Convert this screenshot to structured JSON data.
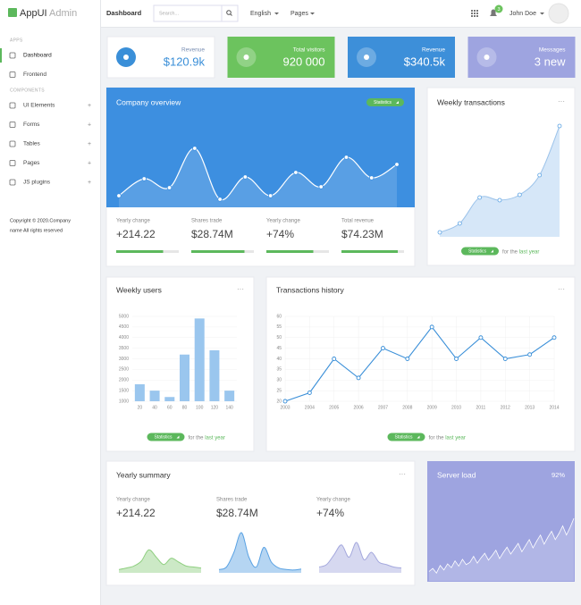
{
  "logo": {
    "name": "AppUI",
    "suffix": "Admin"
  },
  "topbar": {
    "page": "Dashboard",
    "search_placeholder": "Search...",
    "language": "English",
    "pages": "Pages",
    "notifications": 3,
    "user": "John Doe"
  },
  "sidebar": {
    "sections": [
      {
        "title": "APPS",
        "expandable": false,
        "items": [
          "Dashboard",
          "Frontend"
        ]
      },
      {
        "title": "COMPONENTS",
        "expandable": true,
        "items": [
          "UI Elements",
          "Forms",
          "Tables",
          "Pages",
          "JS plugins"
        ]
      }
    ],
    "copyright": [
      "Copyright © 2020.Company",
      "name All rights reserved"
    ]
  },
  "stats": [
    {
      "label": "Revenue",
      "value": "$120.9k",
      "color": "#ffffff"
    },
    {
      "label": "Total visitors",
      "value": "920 000",
      "color": "#6cc35e"
    },
    {
      "label": "Revenue",
      "value": "$340.5k",
      "color": "#3d8fd9"
    },
    {
      "label": "Messages",
      "value": "3 new",
      "color": "#9ea4e0"
    }
  ],
  "company_overview": {
    "title": "Company overview",
    "badge": "Statistics",
    "values": [
      13,
      32,
      22,
      66,
      9,
      34,
      13,
      39,
      23,
      56,
      33,
      48
    ],
    "kpis": [
      {
        "label": "Yearly change",
        "value": "+214.22",
        "progress": 75
      },
      {
        "label": "Shares trade",
        "value": "$28.74M",
        "progress": 85
      },
      {
        "label": "Yearly change",
        "value": "+74%",
        "progress": 75
      },
      {
        "label": "Total revenue",
        "value": "$74.23M",
        "progress": 90
      }
    ]
  },
  "weekly_transactions": {
    "title": "Weekly transactions",
    "badge": "Statistics",
    "footer_prefix": "for the",
    "footer_link": "last year",
    "values": [
      5,
      15,
      44,
      41,
      47,
      69,
      124
    ]
  },
  "chart_data": [
    {
      "type": "bar",
      "title": "Weekly users",
      "badge": "Statistics",
      "footer_prefix": "for the",
      "footer_link": "last year",
      "categories": [
        "20",
        "40",
        "60",
        "80",
        "100",
        "120",
        "140"
      ],
      "values": [
        1800,
        1500,
        1200,
        3200,
        4900,
        3400,
        1500
      ],
      "color": "#9ac6ee",
      "ylim": [
        1000,
        5000
      ],
      "yticks": [
        1000,
        1500,
        2000,
        2500,
        3000,
        3500,
        4000,
        4500,
        5000
      ],
      "grid": true
    },
    {
      "type": "line",
      "title": "Transactions history",
      "badge": "Statistics",
      "footer_prefix": "for the",
      "footer_link": "last year",
      "x": [
        2003,
        2004,
        2005,
        2006,
        2007,
        2008,
        2009,
        2010,
        2011,
        2012,
        2013,
        2014
      ],
      "values": [
        20,
        24,
        40,
        31,
        45,
        40,
        55,
        40,
        50,
        40,
        42,
        50
      ],
      "color": "#3a8fd8",
      "xlim": [
        2003,
        2014
      ],
      "xticks": [
        2003,
        2004,
        2005,
        2006,
        2007,
        2008,
        2009,
        2010,
        2011,
        2012,
        2013,
        2014
      ],
      "ylim": [
        20,
        60
      ],
      "yticks": [
        20,
        25,
        30,
        35,
        40,
        45,
        50,
        55,
        60
      ],
      "grid": true
    }
  ],
  "yearly_summary": {
    "title": "Yearly summary",
    "kpis": [
      {
        "label": "Yearly change",
        "value": "+214.22",
        "color": "#8fcf80",
        "values": [
          5,
          8,
          12,
          22,
          45,
          30,
          15,
          28,
          20,
          12,
          10,
          8
        ]
      },
      {
        "label": "Shares trade",
        "value": "$28.74M",
        "color": "#5aa2e3",
        "values": [
          5,
          10,
          40,
          80,
          30,
          10,
          50,
          20,
          8,
          5,
          4,
          6
        ]
      },
      {
        "label": "Yearly change",
        "value": "+74%",
        "color": "#a4a8dd",
        "values": [
          10,
          15,
          35,
          55,
          30,
          60,
          25,
          40,
          20,
          15,
          10,
          8
        ]
      }
    ]
  },
  "server_load": {
    "title": "Server load",
    "value": "92%",
    "values": [
      10,
      14,
      8,
      18,
      12,
      20,
      15,
      24,
      17,
      26,
      19,
      22,
      30,
      21,
      28,
      34,
      25,
      31,
      38,
      27,
      35,
      42,
      33,
      40,
      47,
      36,
      44,
      52,
      41,
      50,
      58,
      46,
      55,
      63,
      52,
      60,
      70,
      58,
      68,
      80
    ]
  }
}
